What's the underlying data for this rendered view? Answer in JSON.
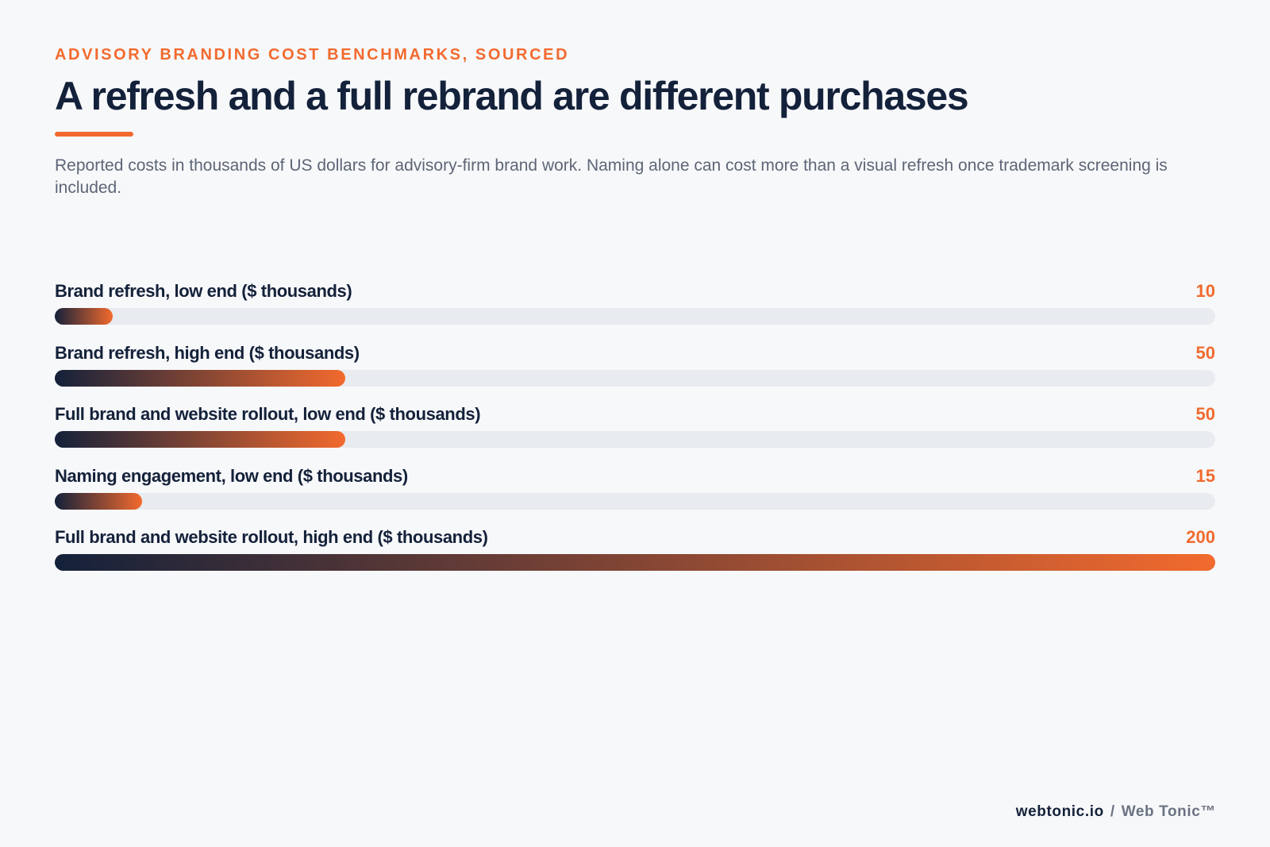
{
  "header": {
    "eyebrow": "ADVISORY BRANDING COST BENCHMARKS, SOURCED",
    "title": "A refresh and a full rebrand are different purchases",
    "subtitle": "Reported costs in thousands of US dollars for advisory-firm brand work. Naming alone can cost more than a visual refresh once trademark screening is included."
  },
  "colors": {
    "accent": "#f26a2e",
    "navy": "#14213a",
    "track": "#e8ebef",
    "background": "#f7f8fa"
  },
  "chart_data": {
    "type": "bar",
    "orientation": "horizontal",
    "categories": [
      "Brand refresh, low end ($ thousands)",
      "Brand refresh, high end ($ thousands)",
      "Full brand and website rollout, low end ($ thousands)",
      "Naming engagement, low end ($ thousands)",
      "Full brand and website rollout, high end ($ thousands)"
    ],
    "values": [
      10,
      50,
      50,
      15,
      200
    ],
    "xlim": [
      0,
      200
    ],
    "grid": false,
    "legend": "none"
  },
  "footer": {
    "site": "webtonic.io",
    "separator": "/",
    "brand": "Web Tonic™"
  }
}
